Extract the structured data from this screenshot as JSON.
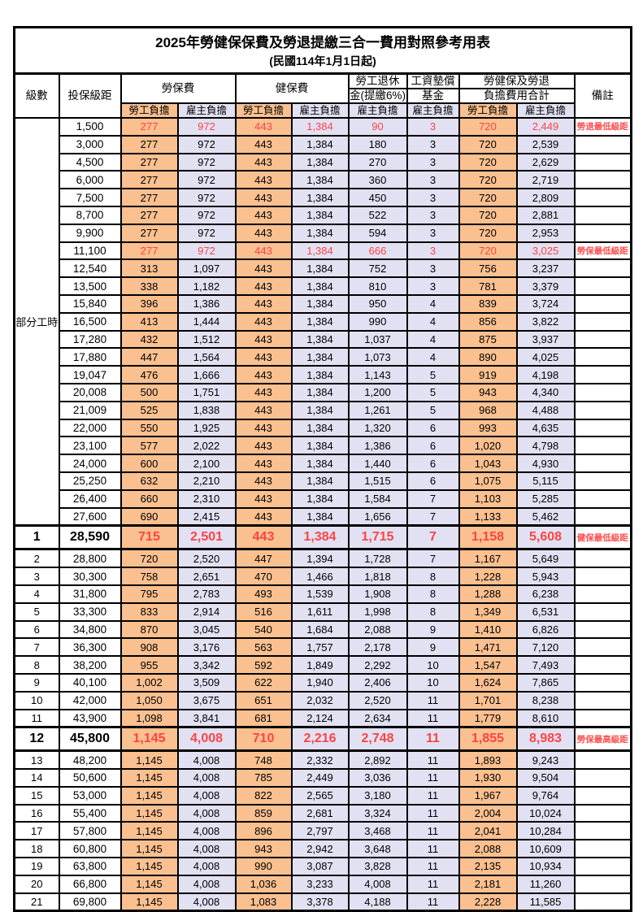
{
  "title": "2025年勞健保保費及勞退提繳三合一費用對照參考用表",
  "subtitle": "(民國114年1月1日起)",
  "header": {
    "level": "級數",
    "bracket": "投保級距",
    "labor_ins": "勞保費",
    "health_ins": "健保費",
    "pension_line1": "勞工退休",
    "pension_line2": "金(提繳6%)",
    "arrears_line1": "工資墊償",
    "arrears_line2": "基金",
    "total_line1": "勞健保及勞退",
    "total_line2": "負擔費用合計",
    "note": "備註",
    "employee": "勞工負擔",
    "employer": "雇主負擔"
  },
  "part_time_label": "部分工時",
  "colors": {
    "employee_bg": "#FAC090",
    "employer_bg": "#E2E1F3",
    "highlight_red": "#FF4343",
    "note_red": "#FF4D4D"
  },
  "rows": [
    {
      "level": "部分工時",
      "level_rowspan": 23,
      "bracket": "1,500",
      "fees": [
        "277",
        "972",
        "443",
        "1,384",
        "90",
        "3",
        "720",
        "2,449"
      ],
      "note": "勞退最低級距",
      "red": true
    },
    {
      "level": null,
      "bracket": "3,000",
      "fees": [
        "277",
        "972",
        "443",
        "1,384",
        "180",
        "3",
        "720",
        "2,539"
      ],
      "note": ""
    },
    {
      "level": null,
      "bracket": "4,500",
      "fees": [
        "277",
        "972",
        "443",
        "1,384",
        "270",
        "3",
        "720",
        "2,629"
      ],
      "note": ""
    },
    {
      "level": null,
      "bracket": "6,000",
      "fees": [
        "277",
        "972",
        "443",
        "1,384",
        "360",
        "3",
        "720",
        "2,719"
      ],
      "note": ""
    },
    {
      "level": null,
      "bracket": "7,500",
      "fees": [
        "277",
        "972",
        "443",
        "1,384",
        "450",
        "3",
        "720",
        "2,809"
      ],
      "note": ""
    },
    {
      "level": null,
      "bracket": "8,700",
      "fees": [
        "277",
        "972",
        "443",
        "1,384",
        "522",
        "3",
        "720",
        "2,881"
      ],
      "note": ""
    },
    {
      "level": null,
      "bracket": "9,900",
      "fees": [
        "277",
        "972",
        "443",
        "1,384",
        "594",
        "3",
        "720",
        "2,953"
      ],
      "note": ""
    },
    {
      "level": null,
      "bracket": "11,100",
      "fees": [
        "277",
        "972",
        "443",
        "1,384",
        "666",
        "3",
        "720",
        "3,025"
      ],
      "note": "勞保最低級距",
      "red": true
    },
    {
      "level": null,
      "bracket": "12,540",
      "fees": [
        "313",
        "1,097",
        "443",
        "1,384",
        "752",
        "3",
        "756",
        "3,237"
      ],
      "note": ""
    },
    {
      "level": null,
      "bracket": "13,500",
      "fees": [
        "338",
        "1,182",
        "443",
        "1,384",
        "810",
        "3",
        "781",
        "3,379"
      ],
      "note": ""
    },
    {
      "level": null,
      "bracket": "15,840",
      "fees": [
        "396",
        "1,386",
        "443",
        "1,384",
        "950",
        "4",
        "839",
        "3,724"
      ],
      "note": ""
    },
    {
      "level": null,
      "bracket": "16,500",
      "fees": [
        "413",
        "1,444",
        "443",
        "1,384",
        "990",
        "4",
        "856",
        "3,822"
      ],
      "note": ""
    },
    {
      "level": null,
      "bracket": "17,280",
      "fees": [
        "432",
        "1,512",
        "443",
        "1,384",
        "1,037",
        "4",
        "875",
        "3,937"
      ],
      "note": ""
    },
    {
      "level": null,
      "bracket": "17,880",
      "fees": [
        "447",
        "1,564",
        "443",
        "1,384",
        "1,073",
        "4",
        "890",
        "4,025"
      ],
      "note": ""
    },
    {
      "level": null,
      "bracket": "19,047",
      "fees": [
        "476",
        "1,666",
        "443",
        "1,384",
        "1,143",
        "5",
        "919",
        "4,198"
      ],
      "note": ""
    },
    {
      "level": null,
      "bracket": "20,008",
      "fees": [
        "500",
        "1,751",
        "443",
        "1,384",
        "1,200",
        "5",
        "943",
        "4,340"
      ],
      "note": ""
    },
    {
      "level": null,
      "bracket": "21,009",
      "fees": [
        "525",
        "1,838",
        "443",
        "1,384",
        "1,261",
        "5",
        "968",
        "4,488"
      ],
      "note": ""
    },
    {
      "level": null,
      "bracket": "22,000",
      "fees": [
        "550",
        "1,925",
        "443",
        "1,384",
        "1,320",
        "6",
        "993",
        "4,635"
      ],
      "note": ""
    },
    {
      "level": null,
      "bracket": "23,100",
      "fees": [
        "577",
        "2,022",
        "443",
        "1,384",
        "1,386",
        "6",
        "1,020",
        "4,798"
      ],
      "note": ""
    },
    {
      "level": null,
      "bracket": "24,000",
      "fees": [
        "600",
        "2,100",
        "443",
        "1,384",
        "1,440",
        "6",
        "1,043",
        "4,930"
      ],
      "note": ""
    },
    {
      "level": null,
      "bracket": "25,250",
      "fees": [
        "632",
        "2,210",
        "443",
        "1,384",
        "1,515",
        "6",
        "1,075",
        "5,115"
      ],
      "note": ""
    },
    {
      "level": null,
      "bracket": "26,400",
      "fees": [
        "660",
        "2,310",
        "443",
        "1,384",
        "1,584",
        "7",
        "1,103",
        "5,285"
      ],
      "note": ""
    },
    {
      "level": null,
      "bracket": "27,600",
      "fees": [
        "690",
        "2,415",
        "443",
        "1,384",
        "1,656",
        "7",
        "1,133",
        "5,462"
      ],
      "note": ""
    },
    {
      "level": "1",
      "bracket": "28,590",
      "fees": [
        "715",
        "2,501",
        "443",
        "1,384",
        "1,715",
        "7",
        "1,158",
        "5,608"
      ],
      "note": "健保最低級距",
      "red": true,
      "big": true
    },
    {
      "level": "2",
      "bracket": "28,800",
      "fees": [
        "720",
        "2,520",
        "447",
        "1,394",
        "1,728",
        "7",
        "1,167",
        "5,649"
      ],
      "note": ""
    },
    {
      "level": "3",
      "bracket": "30,300",
      "fees": [
        "758",
        "2,651",
        "470",
        "1,466",
        "1,818",
        "8",
        "1,228",
        "5,943"
      ],
      "note": ""
    },
    {
      "level": "4",
      "bracket": "31,800",
      "fees": [
        "795",
        "2,783",
        "493",
        "1,539",
        "1,908",
        "8",
        "1,288",
        "6,238"
      ],
      "note": ""
    },
    {
      "level": "5",
      "bracket": "33,300",
      "fees": [
        "833",
        "2,914",
        "516",
        "1,611",
        "1,998",
        "8",
        "1,349",
        "6,531"
      ],
      "note": ""
    },
    {
      "level": "6",
      "bracket": "34,800",
      "fees": [
        "870",
        "3,045",
        "540",
        "1,684",
        "2,088",
        "9",
        "1,410",
        "6,826"
      ],
      "note": ""
    },
    {
      "level": "7",
      "bracket": "36,300",
      "fees": [
        "908",
        "3,176",
        "563",
        "1,757",
        "2,178",
        "9",
        "1,471",
        "7,120"
      ],
      "note": ""
    },
    {
      "level": "8",
      "bracket": "38,200",
      "fees": [
        "955",
        "3,342",
        "592",
        "1,849",
        "2,292",
        "10",
        "1,547",
        "7,493"
      ],
      "note": ""
    },
    {
      "level": "9",
      "bracket": "40,100",
      "fees": [
        "1,002",
        "3,509",
        "622",
        "1,940",
        "2,406",
        "10",
        "1,624",
        "7,865"
      ],
      "note": ""
    },
    {
      "level": "10",
      "bracket": "42,000",
      "fees": [
        "1,050",
        "3,675",
        "651",
        "2,032",
        "2,520",
        "11",
        "1,701",
        "8,238"
      ],
      "note": ""
    },
    {
      "level": "11",
      "bracket": "43,900",
      "fees": [
        "1,098",
        "3,841",
        "681",
        "2,124",
        "2,634",
        "11",
        "1,779",
        "8,610"
      ],
      "note": ""
    },
    {
      "level": "12",
      "bracket": "45,800",
      "fees": [
        "1,145",
        "4,008",
        "710",
        "2,216",
        "2,748",
        "11",
        "1,855",
        "8,983"
      ],
      "note": "勞保最高級距",
      "red": true,
      "big": true
    },
    {
      "level": "13",
      "bracket": "48,200",
      "fees": [
        "1,145",
        "4,008",
        "748",
        "2,332",
        "2,892",
        "11",
        "1,893",
        "9,243"
      ],
      "note": ""
    },
    {
      "level": "14",
      "bracket": "50,600",
      "fees": [
        "1,145",
        "4,008",
        "785",
        "2,449",
        "3,036",
        "11",
        "1,930",
        "9,504"
      ],
      "note": ""
    },
    {
      "level": "15",
      "bracket": "53,000",
      "fees": [
        "1,145",
        "4,008",
        "822",
        "2,565",
        "3,180",
        "11",
        "1,967",
        "9,764"
      ],
      "note": ""
    },
    {
      "level": "16",
      "bracket": "55,400",
      "fees": [
        "1,145",
        "4,008",
        "859",
        "2,681",
        "3,324",
        "11",
        "2,004",
        "10,024"
      ],
      "note": ""
    },
    {
      "level": "17",
      "bracket": "57,800",
      "fees": [
        "1,145",
        "4,008",
        "896",
        "2,797",
        "3,468",
        "11",
        "2,041",
        "10,284"
      ],
      "note": ""
    },
    {
      "level": "18",
      "bracket": "60,800",
      "fees": [
        "1,145",
        "4,008",
        "943",
        "2,942",
        "3,648",
        "11",
        "2,088",
        "10,609"
      ],
      "note": ""
    },
    {
      "level": "19",
      "bracket": "63,800",
      "fees": [
        "1,145",
        "4,008",
        "990",
        "3,087",
        "3,828",
        "11",
        "2,135",
        "10,934"
      ],
      "note": ""
    },
    {
      "level": "20",
      "bracket": "66,800",
      "fees": [
        "1,145",
        "4,008",
        "1,036",
        "3,233",
        "4,008",
        "11",
        "2,181",
        "11,260"
      ],
      "note": ""
    },
    {
      "level": "21",
      "bracket": "69,800",
      "fees": [
        "1,145",
        "4,008",
        "1,083",
        "3,378",
        "4,188",
        "11",
        "2,228",
        "11,585"
      ],
      "note": ""
    }
  ]
}
